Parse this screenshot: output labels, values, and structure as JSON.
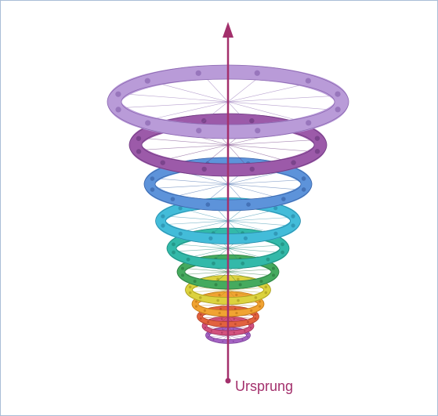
{
  "diagram": {
    "origin_label": "Ursprung"
  }
}
